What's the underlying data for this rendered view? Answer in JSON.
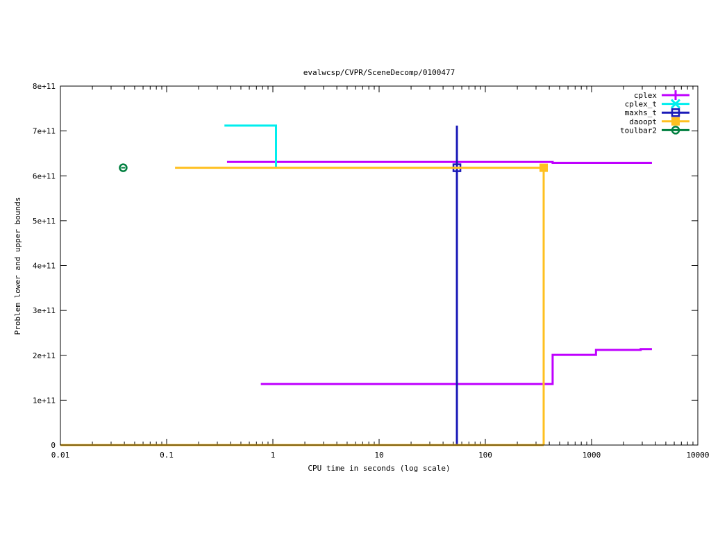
{
  "chart_data": {
    "type": "line",
    "title": "evalwcsp/CVPR/SceneDecomp/0100477",
    "xlabel": "CPU time in seconds (log scale)",
    "ylabel": "Problem lower and upper bounds",
    "x_scale": "log",
    "xlim": [
      0.01,
      10000
    ],
    "ylim": [
      0,
      800000000000
    ],
    "x_ticks": [
      {
        "v": 0.01,
        "label": "0.01"
      },
      {
        "v": 0.1,
        "label": "0.1"
      },
      {
        "v": 1,
        "label": "1"
      },
      {
        "v": 10,
        "label": "10"
      },
      {
        "v": 100,
        "label": "100"
      },
      {
        "v": 1000,
        "label": "1000"
      },
      {
        "v": 10000,
        "label": "10000"
      }
    ],
    "y_ticks": [
      {
        "v": 0,
        "label": "0"
      },
      {
        "v": 100000000000.0,
        "label": "1e+11"
      },
      {
        "v": 200000000000.0,
        "label": "2e+11"
      },
      {
        "v": 300000000000.0,
        "label": "3e+11"
      },
      {
        "v": 400000000000.0,
        "label": "4e+11"
      },
      {
        "v": 500000000000.0,
        "label": "5e+11"
      },
      {
        "v": 600000000000.0,
        "label": "6e+11"
      },
      {
        "v": 700000000000.0,
        "label": "7e+11"
      },
      {
        "v": 800000000000.0,
        "label": "8e+11"
      }
    ],
    "grid": false,
    "legend_position": "top-right",
    "series": [
      {
        "name": "cplex",
        "color": "#bf00ff",
        "marker": "plus",
        "paths": [
          [
            [
              0.37,
              631000000000.0
            ],
            [
              430,
              631000000000.0
            ],
            [
              430,
              629000000000.0
            ],
            [
              3700,
              629000000000.0
            ]
          ],
          [
            [
              0.77,
              136000000000.0
            ],
            [
              430,
              136000000000.0
            ],
            [
              430,
              201000000000.0
            ],
            [
              1100,
              201000000000.0
            ],
            [
              1100,
              212000000000.0
            ],
            [
              2900,
              212000000000.0
            ],
            [
              2900,
              214000000000.0
            ],
            [
              3700,
              214000000000.0
            ]
          ]
        ],
        "markers": []
      },
      {
        "name": "cplex_t",
        "color": "#00eeee",
        "marker": "cross",
        "paths": [
          [
            [
              0.35,
              712000000000.0
            ],
            [
              1.07,
              712000000000.0
            ],
            [
              1.07,
              619000000000.0
            ]
          ]
        ],
        "markers": []
      },
      {
        "name": "maxhs_t",
        "color": "#1a1ab8",
        "marker": "square-open",
        "paths": [
          [
            [
              54,
              712000000000.0
            ],
            [
              54,
              0
            ]
          ]
        ],
        "markers": [
          [
            54,
            618000000000.0
          ]
        ]
      },
      {
        "name": "daoopt",
        "color": "#ffc020",
        "marker": "square-filled",
        "paths": [
          [
            [
              0.12,
              618000000000.0
            ],
            [
              354,
              618000000000.0
            ],
            [
              354,
              0
            ]
          ],
          [
            [
              0.01,
              0
            ],
            [
              354,
              0
            ]
          ]
        ],
        "markers": [
          [
            354,
            618000000000.0
          ]
        ]
      },
      {
        "name": "toulbar2",
        "color": "#007f3f",
        "marker": "circle",
        "paths": [],
        "markers": [
          [
            0.039,
            618000000000.0
          ]
        ]
      }
    ]
  }
}
